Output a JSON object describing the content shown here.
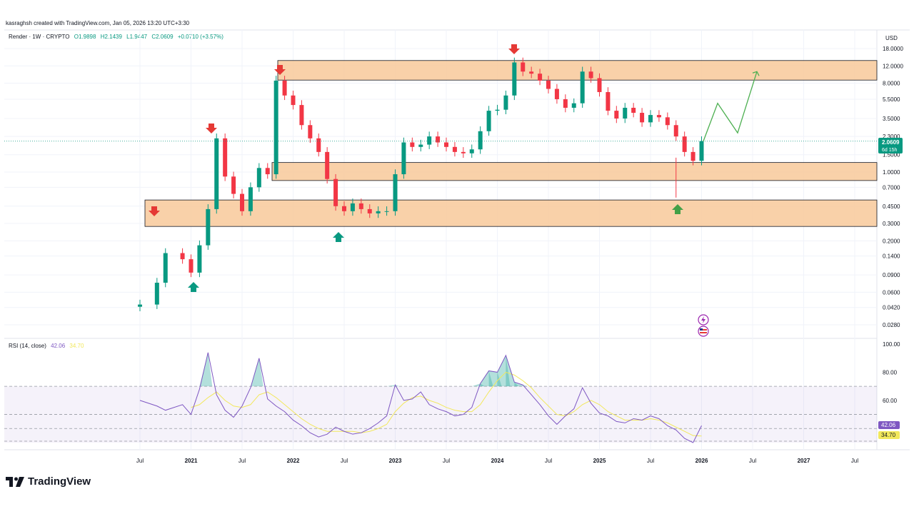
{
  "header": {
    "attribution": "kasraghsh created with TradingView.com, Jan 05, 2026 13:20 UTC+3:30"
  },
  "legend": {
    "symbol": "Render · 1W · CRYPTO",
    "open": "O1.9898",
    "high": "H2.1439",
    "low": "L1.9447",
    "close": "C2.0609",
    "change": "+0.0710 (+3.57%)"
  },
  "rsi_legend": {
    "label": "RSI (14, close)",
    "rsi_value": "42.06",
    "ma_value": "34.70"
  },
  "price_badge": {
    "price": "2.0609",
    "countdown": "6d 15h"
  },
  "rsi_badges": {
    "rsi": "42.06",
    "ma": "34.70"
  },
  "currency": "USD",
  "brand": "TradingView",
  "colors": {
    "up": "#089981",
    "down": "#f23645",
    "zone": "#f8c99a",
    "rsi": "#7e57c2",
    "rsi_ma": "#f2e85c",
    "arrow_up": "#089981",
    "arrow_down": "#e53935",
    "projection": "#4caf50"
  },
  "chart_data": [
    {
      "type": "line",
      "title": "Render · 1W · CRYPTO",
      "scale": "log",
      "y_ticks": [
        "18.0000",
        "12.0000",
        "8.0000",
        "5.5000",
        "3.5000",
        "2.3000",
        "1.5000",
        "1.0000",
        "0.7000",
        "0.4500",
        "0.3000",
        "0.2000",
        "0.1400",
        "0.0900",
        "0.0600",
        "0.0420",
        "0.0280"
      ],
      "x_ticks": [
        "Jul",
        "2021",
        "Jul",
        "2022",
        "Jul",
        "2023",
        "Jul",
        "2024",
        "Jul",
        "2025",
        "Jul",
        "2026",
        "Jul",
        "2027",
        "Jul"
      ],
      "ylim": [
        0.022,
        19
      ],
      "x": [
        "2020-07",
        "2020-09",
        "2020-10",
        "2020-12",
        "2021-01",
        "2021-02",
        "2021-03",
        "2021-04",
        "2021-05",
        "2021-06",
        "2021-07",
        "2021-08",
        "2021-09",
        "2021-10",
        "2021-11",
        "2021-12",
        "2022-01",
        "2022-02",
        "2022-03",
        "2022-04",
        "2022-05",
        "2022-06",
        "2022-07",
        "2022-08",
        "2022-09",
        "2022-10",
        "2022-11",
        "2022-12",
        "2023-01",
        "2023-02",
        "2023-03",
        "2023-04",
        "2023-05",
        "2023-06",
        "2023-07",
        "2023-08",
        "2023-09",
        "2023-10",
        "2023-11",
        "2023-12",
        "2024-01",
        "2024-02",
        "2024-03",
        "2024-04",
        "2024-05",
        "2024-06",
        "2024-07",
        "2024-08",
        "2024-09",
        "2024-10",
        "2024-11",
        "2024-12",
        "2025-01",
        "2025-02",
        "2025-03",
        "2025-04",
        "2025-05",
        "2025-06",
        "2025-07",
        "2025-08",
        "2025-09",
        "2025-10",
        "2025-11",
        "2025-12",
        "2026-01"
      ],
      "series": [
        {
          "values": [
            0.045,
            0.075,
            0.15,
            0.13,
            0.095,
            0.18,
            0.42,
            2.2,
            0.9,
            0.6,
            0.4,
            0.7,
            1.1,
            0.95,
            8.5,
            6.0,
            4.8,
            3.0,
            2.2,
            1.6,
            0.85,
            0.45,
            0.4,
            0.48,
            0.42,
            0.38,
            0.4,
            0.4,
            0.95,
            2.0,
            1.8,
            1.9,
            2.3,
            2.0,
            1.8,
            1.6,
            1.55,
            1.7,
            2.6,
            4.2,
            4.3,
            6.0,
            13.0,
            10.5,
            10.0,
            8.5,
            7.0,
            5.5,
            4.5,
            5.0,
            10.5,
            9.0,
            6.5,
            4.2,
            3.5,
            4.5,
            4.0,
            3.2,
            3.8,
            3.6,
            3.0,
            2.3,
            1.6,
            1.3,
            2.06
          ]
        }
      ],
      "zones": [
        [
          8.6,
          13.6
        ],
        [
          0.82,
          1.25
        ],
        [
          0.28,
          0.52
        ]
      ],
      "projection": [
        2.06,
        5.0,
        2.5,
        10.5
      ]
    },
    {
      "type": "line",
      "title": "RSI (14, close)",
      "y_ticks": [
        "100.00",
        "80.00",
        "60.00"
      ],
      "ylim": [
        30,
        100
      ],
      "bands": [
        40,
        50,
        70
      ],
      "series": [
        {
          "name": "RSI",
          "values": [
            60,
            56,
            53,
            57,
            50,
            68,
            94,
            64,
            53,
            48,
            56,
            69,
            90,
            61,
            56,
            52,
            46,
            42,
            37,
            34,
            36,
            41,
            38,
            36,
            37,
            40,
            44,
            49,
            71,
            60,
            61,
            66,
            57,
            54,
            52,
            49,
            50,
            55,
            72,
            81,
            80,
            92,
            73,
            71,
            64,
            57,
            49,
            43,
            49,
            54,
            69,
            58,
            51,
            49,
            45,
            44,
            47,
            46,
            49,
            47,
            42,
            39,
            33,
            30,
            42.06
          ]
        },
        {
          "name": "RSI MA",
          "values": [
            null,
            null,
            null,
            null,
            55,
            57,
            62,
            66,
            60,
            56,
            55,
            57,
            64,
            66,
            62,
            57,
            52,
            47,
            43,
            40,
            38,
            38,
            38,
            38,
            37,
            38,
            40,
            43,
            52,
            58,
            62,
            63,
            60,
            58,
            55,
            53,
            52,
            52,
            57,
            66,
            74,
            80,
            78,
            74,
            69,
            62,
            56,
            50,
            49,
            52,
            57,
            60,
            57,
            52,
            49,
            46,
            46,
            46,
            47,
            46,
            44,
            41,
            38,
            35,
            34.7
          ]
        }
      ]
    }
  ]
}
